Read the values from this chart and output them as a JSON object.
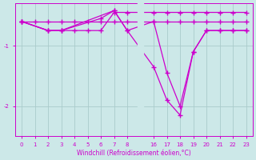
{
  "xlabel": "Windchill (Refroidissement éolien,°C)",
  "bg_color": "#cce8e8",
  "line_color": "#cc00cc",
  "grid_color": "#aacccc",
  "yticks": [
    -2,
    -1
  ],
  "ylim": [
    -2.5,
    -0.3
  ],
  "xtick_labels": [
    "0",
    "1",
    "2",
    "3",
    "4",
    "5",
    "6",
    "7",
    "8",
    "16",
    "17",
    "18",
    "19",
    "20",
    "21",
    "22",
    "23"
  ],
  "xtick_pos": [
    0,
    1,
    2,
    3,
    4,
    5,
    6,
    7,
    8,
    10,
    11,
    12,
    13,
    14,
    15,
    16,
    17
  ],
  "xlim": [
    -0.5,
    17.5
  ],
  "series": [
    {
      "xpos": [
        0,
        1,
        2,
        3,
        4,
        5,
        6,
        7,
        8,
        10,
        11,
        12,
        13,
        14,
        15,
        16,
        17
      ],
      "y": [
        -0.6,
        -0.6,
        -0.6,
        -0.6,
        -0.6,
        -0.6,
        -0.6,
        -0.6,
        -0.6,
        -0.6,
        -0.6,
        -0.6,
        -0.6,
        -0.6,
        -0.6,
        -0.6,
        -0.6
      ]
    },
    {
      "xpos": [
        0,
        2,
        3,
        4,
        5,
        6,
        7,
        8,
        10,
        11,
        12,
        13,
        14,
        15,
        16,
        17
      ],
      "y": [
        -0.6,
        -0.75,
        -0.75,
        -0.75,
        -0.75,
        -0.75,
        -0.45,
        -0.45,
        -0.45,
        -0.45,
        -0.45,
        -0.45,
        -0.45,
        -0.45,
        -0.45,
        -0.45
      ]
    },
    {
      "xpos": [
        0,
        2,
        3,
        6,
        7,
        8,
        10,
        11,
        12,
        13,
        14,
        15,
        16,
        17
      ],
      "y": [
        -0.6,
        -0.75,
        -0.75,
        -0.55,
        -0.42,
        -0.75,
        -1.35,
        -1.9,
        -2.15,
        -1.1,
        -0.75,
        -0.75,
        -0.75,
        -0.75
      ]
    },
    {
      "xpos": [
        0,
        2,
        3,
        7,
        8,
        10,
        11,
        12,
        13,
        14,
        15,
        16,
        17
      ],
      "y": [
        -0.6,
        -0.75,
        -0.75,
        -0.42,
        -0.75,
        -0.6,
        -1.45,
        -2.0,
        -1.1,
        -0.75,
        -0.75,
        -0.75,
        -0.75
      ]
    }
  ]
}
